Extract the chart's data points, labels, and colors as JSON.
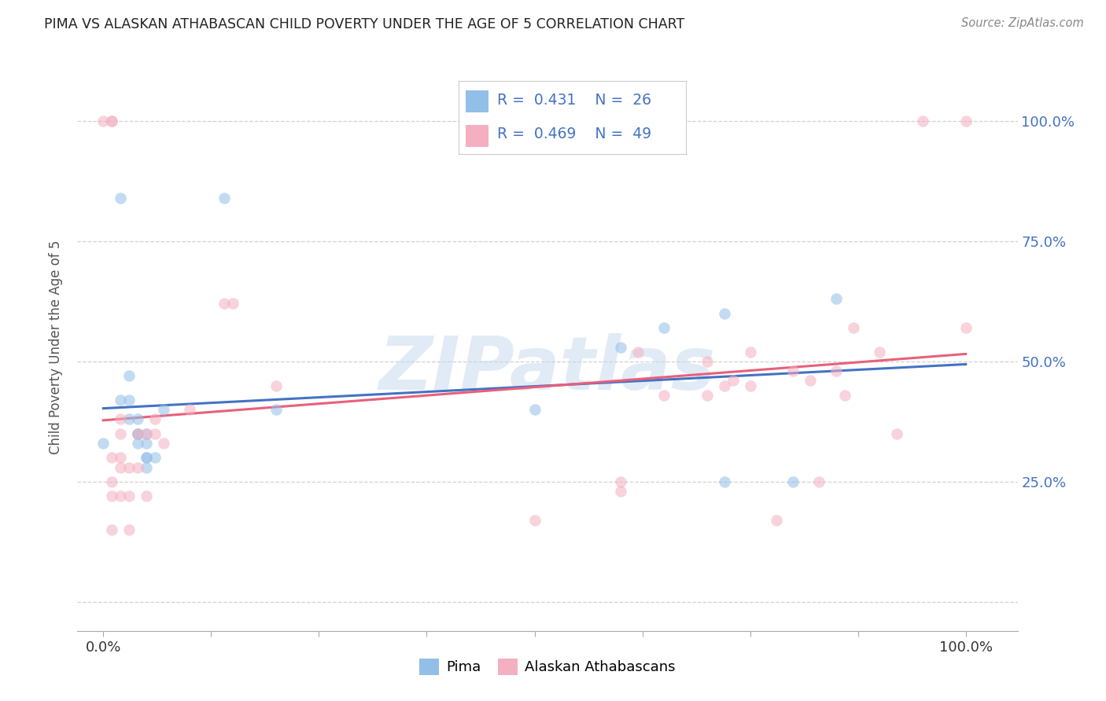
{
  "title": "PIMA VS ALASKAN ATHABASCAN CHILD POVERTY UNDER THE AGE OF 5 CORRELATION CHART",
  "source": "Source: ZipAtlas.com",
  "ylabel": "Child Poverty Under the Age of 5",
  "pima_R": 0.431,
  "pima_N": 26,
  "athabascan_R": 0.469,
  "athabascan_N": 49,
  "pima_color": "#92bfe8",
  "athabascan_color": "#f4afc0",
  "pima_line_color": "#4472c4",
  "athabascan_line_color": "#e8607a",
  "legend_text_color": "#4472c4",
  "right_axis_color": "#4472c4",
  "pima_x": [
    0.02,
    0.02,
    0.03,
    0.03,
    0.03,
    0.04,
    0.04,
    0.04,
    0.04,
    0.05,
    0.05,
    0.05,
    0.05,
    0.05,
    0.06,
    0.07,
    0.0,
    0.14,
    0.2,
    0.5,
    0.6,
    0.65,
    0.72,
    0.72,
    0.8,
    0.85
  ],
  "pima_y": [
    0.84,
    0.42,
    0.42,
    0.47,
    0.38,
    0.35,
    0.38,
    0.33,
    0.35,
    0.33,
    0.35,
    0.3,
    0.3,
    0.28,
    0.3,
    0.4,
    0.33,
    0.84,
    0.4,
    0.4,
    0.53,
    0.57,
    0.6,
    0.25,
    0.25,
    0.63
  ],
  "athabascan_x": [
    0.0,
    0.01,
    0.01,
    0.01,
    0.01,
    0.01,
    0.01,
    0.02,
    0.02,
    0.02,
    0.02,
    0.02,
    0.03,
    0.03,
    0.03,
    0.04,
    0.04,
    0.05,
    0.05,
    0.06,
    0.06,
    0.07,
    0.1,
    0.14,
    0.15,
    0.2,
    0.5,
    0.6,
    0.6,
    0.62,
    0.65,
    0.7,
    0.7,
    0.72,
    0.73,
    0.75,
    0.75,
    0.78,
    0.8,
    0.82,
    0.83,
    0.85,
    0.86,
    0.87,
    0.9,
    0.92,
    0.95,
    1.0,
    1.0
  ],
  "athabascan_y": [
    1.0,
    1.0,
    1.0,
    0.3,
    0.25,
    0.22,
    0.15,
    0.35,
    0.38,
    0.3,
    0.28,
    0.22,
    0.28,
    0.22,
    0.15,
    0.35,
    0.28,
    0.35,
    0.22,
    0.38,
    0.35,
    0.33,
    0.4,
    0.62,
    0.62,
    0.45,
    0.17,
    0.23,
    0.25,
    0.52,
    0.43,
    0.43,
    0.5,
    0.45,
    0.46,
    0.52,
    0.45,
    0.17,
    0.48,
    0.46,
    0.25,
    0.48,
    0.43,
    0.57,
    0.52,
    0.35,
    1.0,
    0.57,
    1.0
  ],
  "xlim": [
    -0.03,
    1.06
  ],
  "ylim": [
    -0.06,
    1.12
  ],
  "xticks": [
    0.0,
    0.125,
    0.25,
    0.375,
    0.5,
    0.625,
    0.75,
    0.875,
    1.0
  ],
  "xticklabels": [
    "0.0%",
    "",
    "",
    "",
    "",
    "",
    "",
    "",
    "100.0%"
  ],
  "yticks": [
    0.0,
    0.25,
    0.5,
    0.75,
    1.0
  ],
  "yticklabels": [
    "",
    "25.0%",
    "50.0%",
    "75.0%",
    "100.0%"
  ],
  "marker_size": 110,
  "alpha": 0.55,
  "grid_color": "#d0d0d0",
  "watermark": "ZIPatlas",
  "watermark_color": "#c5d8ef",
  "watermark_alpha": 0.5
}
